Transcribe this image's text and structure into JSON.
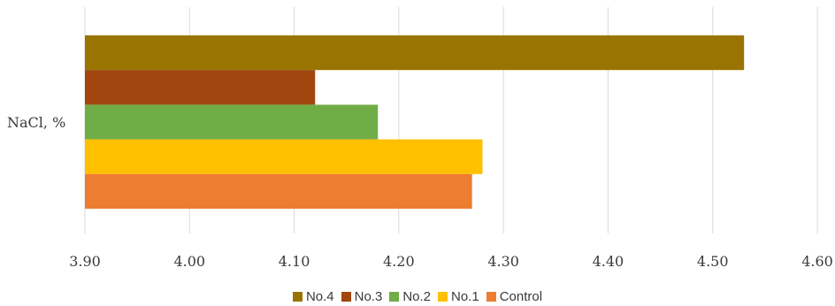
{
  "chart_data": {
    "type": "bar",
    "orientation": "horizontal",
    "categories": [
      "NaCl, %"
    ],
    "series": [
      {
        "name": "No.4",
        "values": [
          4.53
        ],
        "color": "#9A7400"
      },
      {
        "name": "No.3",
        "values": [
          4.12
        ],
        "color": "#A0460E"
      },
      {
        "name": "No.2",
        "values": [
          4.18
        ],
        "color": "#70AD47"
      },
      {
        "name": "No.1",
        "values": [
          4.28
        ],
        "color": "#FFC000"
      },
      {
        "name": "Control",
        "values": [
          4.27
        ],
        "color": "#ED7D31"
      }
    ],
    "xlim": [
      3.9,
      4.6
    ],
    "x_ticks": [
      "3.90",
      "4.00",
      "4.10",
      "4.20",
      "4.30",
      "4.40",
      "4.50",
      "4.60"
    ],
    "grid": true,
    "legend_position": "bottom"
  }
}
